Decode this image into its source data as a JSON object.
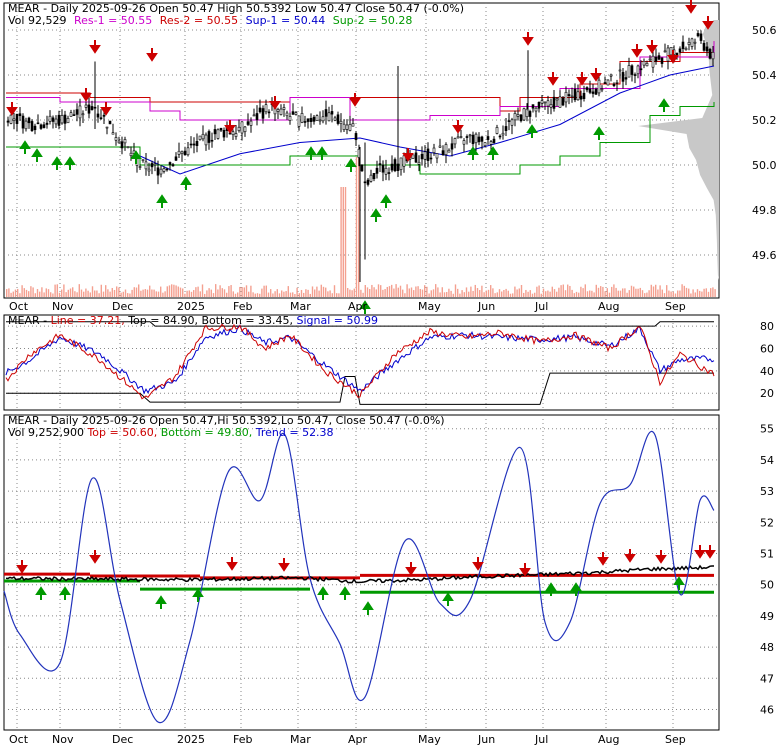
{
  "main": {
    "ticker": "MEAR",
    "line1_prefix": "MEAR - Daily 2025-09-26 Open 50.47  High 50.5392  Low 50.47  Close 50.47 (-0.0%)",
    "vol": "Vol 92,529",
    "res1": "Res-1 = 50.55",
    "res2": "Res-2 = 50.55",
    "sup1": "Sup-1 = 50.44",
    "sup2": "Sup-2 = 50.28",
    "y_ticks": [
      "50.6",
      "50.4",
      "50.2",
      "50.0",
      "49.8",
      "49.6"
    ]
  },
  "stoch": {
    "label_name": "MEAR - ",
    "line": "Line = 37.21, ",
    "top": "Top = 84.90, ",
    "bottom": "Bottom = 33.45, ",
    "signal": "Signal = 50.99",
    "y_ticks": [
      "80",
      "60",
      "40",
      "20"
    ]
  },
  "cycle": {
    "line1": "MEAR - Daily 2025-09-26 Open 50.47,Hi 50.5392,Lo 50.47, Close 50.47 (-0.0%)",
    "vol": "Vol 9,252,900 ",
    "top": "Top = 50.60, ",
    "bottom": "Bottom = 49.80, ",
    "trend": "Trend = 52.38",
    "y_ticks": [
      "55",
      "54",
      "53",
      "52",
      "51",
      "50",
      "49",
      "48",
      "47",
      "46"
    ]
  },
  "x_labels": [
    "Oct",
    "Nov",
    "Dec",
    "2025",
    "Feb",
    "Mar",
    "Apr",
    "May",
    "Jun",
    "Jul",
    "Aug",
    "Sep"
  ],
  "colors": {
    "res": "#cc0000",
    "sup": "#009900",
    "res1": "#cc00cc",
    "sup1": "#0000cc",
    "trend": "#2233bb",
    "volbar": "#f4a090"
  },
  "chart_data": [
    {
      "type": "line",
      "name": "price",
      "x": [
        "Oct",
        "Nov",
        "Dec",
        "2025",
        "Feb",
        "Mar",
        "Apr",
        "May",
        "Jun",
        "Jul",
        "Aug",
        "Sep"
      ],
      "series": [
        {
          "values": [
            50.24,
            50.2,
            49.96,
            50.16,
            50.24,
            50.2,
            50.0,
            50.04,
            50.14,
            50.3,
            50.44,
            50.56
          ]
        }
      ],
      "ylim": [
        49.45,
        50.67
      ]
    },
    {
      "type": "line",
      "name": "stochastic",
      "series": [
        {
          "name": "Line",
          "values": [
            35,
            60,
            70,
            22,
            55,
            75,
            50,
            18,
            60,
            80,
            70,
            75,
            80,
            37
          ]
        },
        {
          "name": "Signal",
          "values": [
            40,
            55,
            68,
            28,
            50,
            70,
            55,
            22,
            55,
            75,
            72,
            72,
            78,
            51
          ]
        }
      ],
      "ylim": [
        5,
        90
      ]
    },
    {
      "type": "line",
      "name": "cycle",
      "series": [
        {
          "name": "Trend",
          "values": [
            49.0,
            48.4,
            53.4,
            46.0,
            45.5,
            53.6,
            52.7,
            54.8,
            48.0,
            47.0,
            49.8,
            51.4,
            49.4,
            49.5,
            54.4,
            48.8,
            48.8,
            52.5,
            49.2,
            54.8,
            49.7,
            52.7,
            52.38
          ]
        }
      ],
      "ylim": [
        45.5,
        55.3
      ]
    }
  ]
}
